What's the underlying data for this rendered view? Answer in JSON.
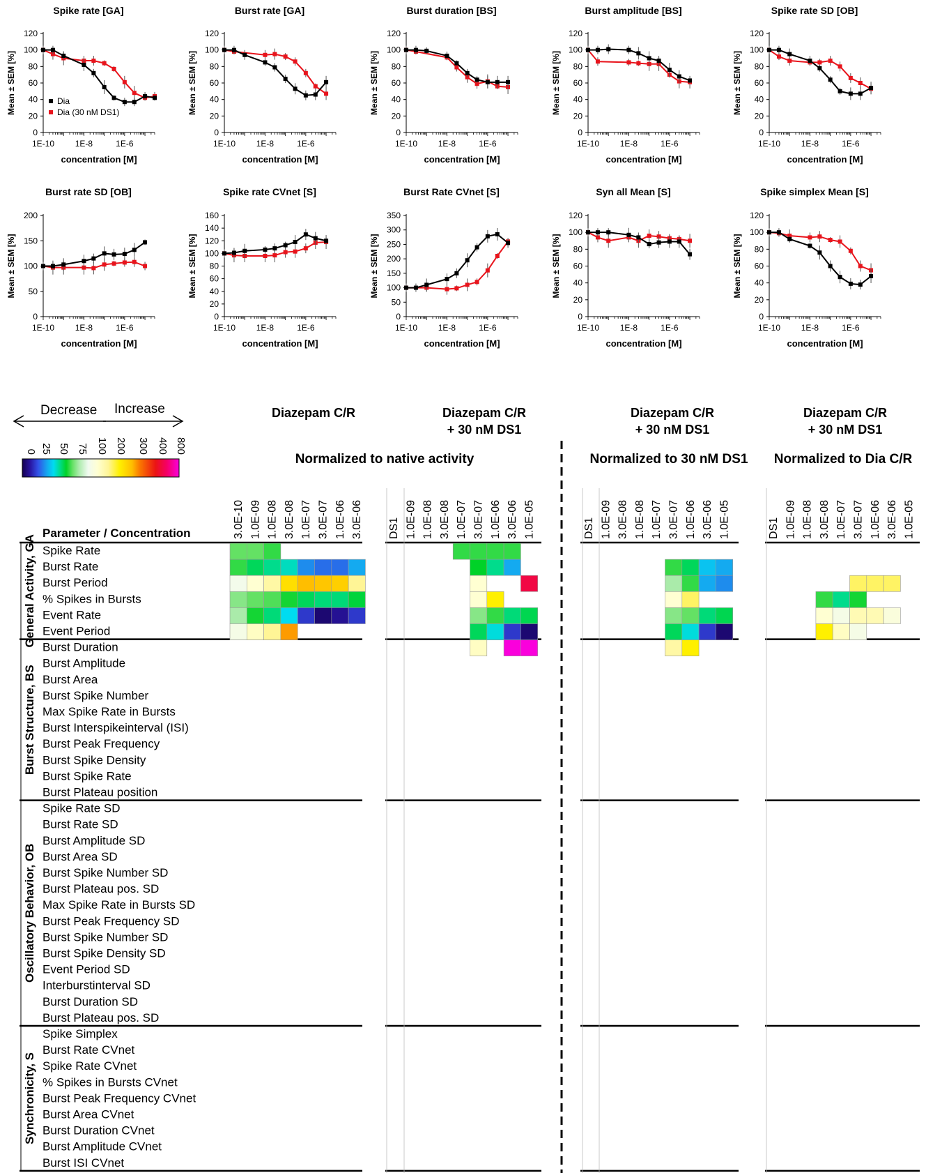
{
  "chart_data": [
    {
      "type": "line",
      "title": "Spike rate [GA]",
      "xlabel": "concentration [M]",
      "ylabel": "Mean ± SEM [%]",
      "yticks": [
        0,
        20,
        40,
        60,
        80,
        100,
        120
      ],
      "ylim": [
        0,
        120
      ],
      "xticks": [
        "1E-10",
        "1E-8",
        "1E-6"
      ],
      "xscale": "log",
      "legend": [
        "Dia",
        "Dia (30 nM DS1)"
      ],
      "x": [
        "1E-10",
        "3E-10",
        "1E-9",
        "3E-9",
        "1E-8",
        "3E-8",
        "1E-7",
        "3E-7",
        "1E-6",
        "3E-6",
        "1E-5",
        "3E-5"
      ],
      "series": [
        {
          "name": "Dia",
          "color": "#000000",
          "values": [
            100,
            100,
            93,
            null,
            82,
            72,
            55,
            42,
            37,
            37,
            44,
            42
          ]
        },
        {
          "name": "Dia (30 nM DS1)",
          "color": "#e8141c",
          "values": [
            100,
            95,
            90,
            null,
            87,
            87,
            84,
            77,
            61,
            48,
            42,
            44
          ]
        }
      ]
    },
    {
      "type": "line",
      "title": "Burst rate [GA]",
      "xlabel": "concentration [M]",
      "ylabel": "Mean ± SEM [%]",
      "yticks": [
        0,
        20,
        40,
        60,
        80,
        100,
        120
      ],
      "ylim": [
        0,
        120
      ],
      "xticks": [
        "1E-10",
        "1E-8",
        "1E-6"
      ],
      "xscale": "log",
      "series": [
        {
          "name": "Dia",
          "color": "#000000",
          "values": [
            100,
            100,
            94,
            null,
            85,
            79,
            65,
            53,
            45,
            46,
            61,
            null
          ]
        },
        {
          "name": "Dia (30 nM DS1)",
          "color": "#e8141c",
          "values": [
            100,
            98,
            null,
            null,
            94,
            95,
            92,
            86,
            72,
            56,
            47,
            null
          ]
        }
      ]
    },
    {
      "type": "line",
      "title": "Burst duration [BS]",
      "xlabel": "concentration [M]",
      "ylabel": "Mean ± SEM [%]",
      "yticks": [
        0,
        20,
        40,
        60,
        80,
        100,
        120
      ],
      "ylim": [
        0,
        120
      ],
      "xticks": [
        "1E-10",
        "1E-8",
        "1E-6"
      ],
      "xscale": "log",
      "series": [
        {
          "name": "Dia",
          "color": "#000000",
          "values": [
            100,
            100,
            99,
            null,
            93,
            84,
            72,
            64,
            61,
            61,
            61,
            null
          ]
        },
        {
          "name": "Dia (30 nM DS1)",
          "color": "#e8141c",
          "values": [
            100,
            98,
            null,
            null,
            91,
            79,
            67,
            59,
            62,
            56,
            55,
            null
          ]
        }
      ]
    },
    {
      "type": "line",
      "title": "Burst amplitude [BS]",
      "xlabel": "concentration [M]",
      "ylabel": "Mean ± SEM [%]",
      "yticks": [
        0,
        20,
        40,
        60,
        80,
        100,
        120
      ],
      "ylim": [
        0,
        120
      ],
      "xticks": [
        "1E-10",
        "1E-8",
        "1E-6"
      ],
      "xscale": "log",
      "series": [
        {
          "name": "Dia",
          "color": "#000000",
          "values": [
            100,
            100,
            101,
            null,
            100,
            96,
            90,
            87,
            76,
            68,
            63,
            null
          ]
        },
        {
          "name": "Dia (30 nM DS1)",
          "color": "#e8141c",
          "values": [
            100,
            86,
            null,
            null,
            85,
            84,
            83,
            83,
            70,
            62,
            61,
            null
          ]
        }
      ]
    },
    {
      "type": "line",
      "title": "Spike rate SD [OB]",
      "xlabel": "concentration [M]",
      "ylabel": "Mean ± SEM [%]",
      "yticks": [
        0,
        20,
        40,
        60,
        80,
        100,
        120
      ],
      "ylim": [
        0,
        120
      ],
      "xticks": [
        "1E-10",
        "1E-8",
        "1E-6"
      ],
      "xscale": "log",
      "series": [
        {
          "name": "Dia",
          "color": "#000000",
          "values": [
            100,
            100,
            95,
            null,
            87,
            78,
            64,
            50,
            47,
            47,
            54,
            null
          ]
        },
        {
          "name": "Dia (30 nM DS1)",
          "color": "#e8141c",
          "values": [
            100,
            92,
            87,
            null,
            85,
            85,
            87,
            80,
            66,
            60,
            53,
            null
          ]
        }
      ]
    },
    {
      "type": "line",
      "title": "Burst rate SD [OB]",
      "xlabel": "concentration [M]",
      "ylabel": "Mean ± SEM [%]",
      "yticks": [
        0,
        50,
        100,
        150,
        200
      ],
      "ylim": [
        0,
        200
      ],
      "xticks": [
        "1E-10",
        "1E-8",
        "1E-6"
      ],
      "xscale": "log",
      "series": [
        {
          "name": "Dia",
          "color": "#000000",
          "values": [
            100,
            100,
            103,
            null,
            110,
            115,
            125,
            123,
            124,
            132,
            147,
            null
          ]
        },
        {
          "name": "Dia (30 nM DS1)",
          "color": "#e8141c",
          "values": [
            100,
            97,
            97,
            null,
            97,
            96,
            103,
            105,
            107,
            108,
            100,
            null
          ]
        }
      ]
    },
    {
      "type": "line",
      "title": "Spike rate CVnet [S]",
      "xlabel": "concentration [M]",
      "ylabel": "Mean ± SEM [%]",
      "yticks": [
        0,
        20,
        40,
        60,
        80,
        100,
        120,
        140,
        160
      ],
      "ylim": [
        0,
        160
      ],
      "xticks": [
        "1E-10",
        "1E-8",
        "1E-6"
      ],
      "xscale": "log",
      "series": [
        {
          "name": "Dia",
          "color": "#000000",
          "values": [
            100,
            101,
            104,
            null,
            106,
            108,
            113,
            118,
            130,
            124,
            120,
            null
          ]
        },
        {
          "name": "Dia (30 nM DS1)",
          "color": "#e8141c",
          "values": [
            100,
            97,
            96,
            null,
            96,
            97,
            102,
            103,
            108,
            117,
            118,
            null
          ]
        }
      ]
    },
    {
      "type": "line",
      "title": "Burst Rate CVnet [S]",
      "xlabel": "concentration [M]",
      "ylabel": "Mean ± SEM [%]",
      "yticks": [
        0,
        50,
        100,
        150,
        200,
        250,
        300,
        350
      ],
      "ylim": [
        0,
        350
      ],
      "xticks": [
        "1E-10",
        "1E-8",
        "1E-6"
      ],
      "xscale": "log",
      "series": [
        {
          "name": "Dia",
          "color": "#000000",
          "values": [
            100,
            100,
            110,
            null,
            130,
            150,
            195,
            240,
            278,
            285,
            255,
            null
          ]
        },
        {
          "name": "Dia (30 nM DS1)",
          "color": "#e8141c",
          "values": [
            100,
            null,
            100,
            null,
            95,
            98,
            110,
            120,
            160,
            210,
            260,
            null
          ]
        }
      ]
    },
    {
      "type": "line",
      "title": "Syn all Mean [S]",
      "xlabel": "concentration [M]",
      "ylabel": "Mean ± SEM [%]",
      "yticks": [
        0,
        20,
        40,
        60,
        80,
        100,
        120
      ],
      "ylim": [
        0,
        120
      ],
      "xticks": [
        "1E-10",
        "1E-8",
        "1E-6"
      ],
      "xscale": "log",
      "series": [
        {
          "name": "Dia",
          "color": "#000000",
          "values": [
            100,
            100,
            100,
            null,
            97,
            94,
            86,
            88,
            89,
            89,
            74,
            null
          ]
        },
        {
          "name": "Dia (30 nM DS1)",
          "color": "#e8141c",
          "values": [
            100,
            94,
            90,
            null,
            94,
            90,
            96,
            95,
            93,
            92,
            90,
            null
          ]
        }
      ]
    },
    {
      "type": "line",
      "title": "Spike simplex Mean [S]",
      "xlabel": "concentration [M]",
      "ylabel": "Mean ± SEM [%]",
      "yticks": [
        0,
        20,
        40,
        60,
        80,
        100,
        120
      ],
      "ylim": [
        0,
        120
      ],
      "xticks": [
        "1E-10",
        "1E-8",
        "1E-6"
      ],
      "xscale": "log",
      "series": [
        {
          "name": "Dia",
          "color": "#000000",
          "values": [
            100,
            100,
            92,
            null,
            84,
            76,
            60,
            47,
            39,
            38,
            48,
            null
          ]
        },
        {
          "name": "Dia (30 nM DS1)",
          "color": "#e8141c",
          "values": [
            100,
            99,
            96,
            null,
            94,
            95,
            91,
            89,
            78,
            60,
            55,
            null
          ]
        }
      ]
    },
    {
      "type": "heatmap",
      "legend": {
        "decrease": "Decrease",
        "increase": "Increase",
        "ticks": [
          "0",
          "25",
          "50",
          "75",
          "100",
          "200",
          "300",
          "400",
          "800"
        ]
      },
      "group_headers": [
        "Diazepam C/R",
        "Diazepam C/R\n+ 30 nM DS1",
        "Diazepam C/R\n+ 30 nM DS1",
        "Diazepam C/R\n+ 30 nM DS1"
      ],
      "section_headers": [
        "Normalized to native activity",
        "Normalized to 30 nM DS1",
        "Normalized to Dia C/R"
      ],
      "row_header": "Parameter / Concentration",
      "blocks": [
        {
          "columns": [
            "3.0E-10",
            "1.0E-09",
            "1.0E-08",
            "3.0E-08",
            "1.0E-07",
            "3.0E-07",
            "1.0E-06",
            "3.0E-06"
          ]
        },
        {
          "columns": [
            "DS1",
            "1.0E-09",
            "1.0E-08",
            "3.0E-08",
            "1.0E-07",
            "3.0E-07",
            "1.0E-06",
            "3.0E-06",
            "1.0E-05"
          ]
        },
        {
          "columns": [
            "DS1",
            "1.0E-09",
            "3.0E-08",
            "1.0E-08",
            "1.0E-07",
            "3.0E-07",
            "1.0E-06",
            "3.0E-06",
            "1.0E-05"
          ]
        },
        {
          "columns": [
            "DS1",
            "1.0E-09",
            "1.0E-08",
            "3.0E-08",
            "1.0E-07",
            "3.0E-07",
            "1.0E-06",
            "3.0E-06",
            "1.0E-05"
          ]
        }
      ],
      "groups": [
        {
          "name": "General Activity, GA",
          "rows": [
            "Spike Rate",
            "Burst Rate",
            "Burst Period",
            "% Spikes in Bursts",
            "Event Rate",
            "Event Period"
          ]
        },
        {
          "name": "Burst Structure, BS",
          "rows": [
            "Burst Duration",
            "Burst Amplitude",
            "Burst Area",
            "Burst Spike Number",
            "Max Spike Rate in Bursts",
            "Burst Interspikeinterval (ISI)",
            "Burst Peak Frequency",
            "Burst Spike Density",
            "Burst Spike Rate",
            "Burst Plateau position"
          ]
        },
        {
          "name": "Oscillatory Behavior, OB",
          "rows": [
            "Spike Rate SD",
            "Burst Rate SD",
            "Burst Amplitude SD",
            "Burst Area SD",
            "Burst Spike Number SD",
            "Burst Plateau pos. SD",
            "Max Spike Rate in Bursts SD",
            "Burst Peak Frequency SD",
            "Burst Spike Number SD",
            "Burst Spike Density SD",
            "Event Period SD",
            "Interburstinterval SD",
            "Burst Duration SD",
            "Burst Plateau pos. SD"
          ]
        },
        {
          "name": "Synchronicity, S",
          "rows": [
            "Spike Simplex",
            "Burst Rate CVnet",
            "Spike Rate CVnet",
            "% Spikes in Bursts CVnet",
            "Burst Peak Frequency CVnet",
            "Burst Area CVnet",
            "Burst Duration CVnet",
            "Burst Amplitude CVnet",
            "Burst ISI CVnet"
          ]
        }
      ],
      "values": [
        [
          [
            80,
            80,
            75,
            null,
            null,
            null,
            null,
            null
          ],
          [
            null,
            null,
            null,
            null,
            75,
            75,
            75,
            75,
            null
          ],
          [
            null,
            null,
            null,
            null,
            null,
            null,
            null,
            null,
            null
          ],
          [
            null,
            null,
            null,
            null,
            null,
            null,
            null,
            null,
            null
          ]
        ],
        [
          [
            75,
            65,
            60,
            55,
            35,
            30,
            30,
            40
          ],
          [
            null,
            null,
            null,
            null,
            null,
            70,
            60,
            40,
            null
          ],
          [
            null,
            null,
            null,
            null,
            null,
            75,
            65,
            45,
            40
          ],
          [
            null,
            null,
            null,
            null,
            null,
            null,
            null,
            null,
            null
          ]
        ],
        [
          [
            105,
            130,
            160,
            220,
            260,
            250,
            240,
            170
          ],
          [
            null,
            null,
            null,
            null,
            null,
            130,
            null,
            null,
            460
          ],
          [
            null,
            null,
            null,
            null,
            null,
            90,
            75,
            40,
            35
          ],
          [
            null,
            null,
            null,
            null,
            null,
            180,
            180,
            180,
            null
          ]
        ],
        [
          [
            85,
            80,
            78,
            72,
            65,
            62,
            62,
            68
          ],
          [
            null,
            null,
            null,
            null,
            null,
            130,
            200,
            null,
            null
          ],
          [
            null,
            null,
            null,
            null,
            null,
            130,
            180,
            null,
            null
          ],
          [
            null,
            null,
            null,
            75,
            60,
            72,
            null,
            null,
            null
          ]
        ],
        [
          [
            90,
            72,
            62,
            50,
            20,
            5,
            10,
            20
          ],
          [
            null,
            null,
            null,
            null,
            null,
            85,
            75,
            62,
            66
          ],
          [
            null,
            null,
            null,
            null,
            null,
            85,
            80,
            62,
            66
          ],
          [
            null,
            null,
            null,
            130,
            110,
            150,
            150,
            120,
            null
          ]
        ],
        [
          [
            110,
            140,
            170,
            280,
            null,
            null,
            null,
            null
          ],
          [
            null,
            null,
            null,
            null,
            null,
            65,
            52,
            20,
            5
          ],
          [
            null,
            null,
            null,
            null,
            null,
            65,
            52,
            20,
            5
          ],
          [
            null,
            null,
            null,
            200,
            140,
            110,
            null,
            null,
            null
          ]
        ],
        [
          [
            null,
            null,
            null,
            null,
            null,
            null,
            null,
            null
          ],
          [
            null,
            null,
            null,
            null,
            null,
            140,
            null,
            800,
            800
          ],
          [
            null,
            null,
            null,
            null,
            null,
            160,
            200,
            null,
            null
          ],
          [
            null,
            null,
            null,
            null,
            null,
            null,
            null,
            null,
            null
          ]
        ]
      ]
    }
  ],
  "meta_colors": {
    "dia": "#000000",
    "ds1": "#e8141c"
  }
}
